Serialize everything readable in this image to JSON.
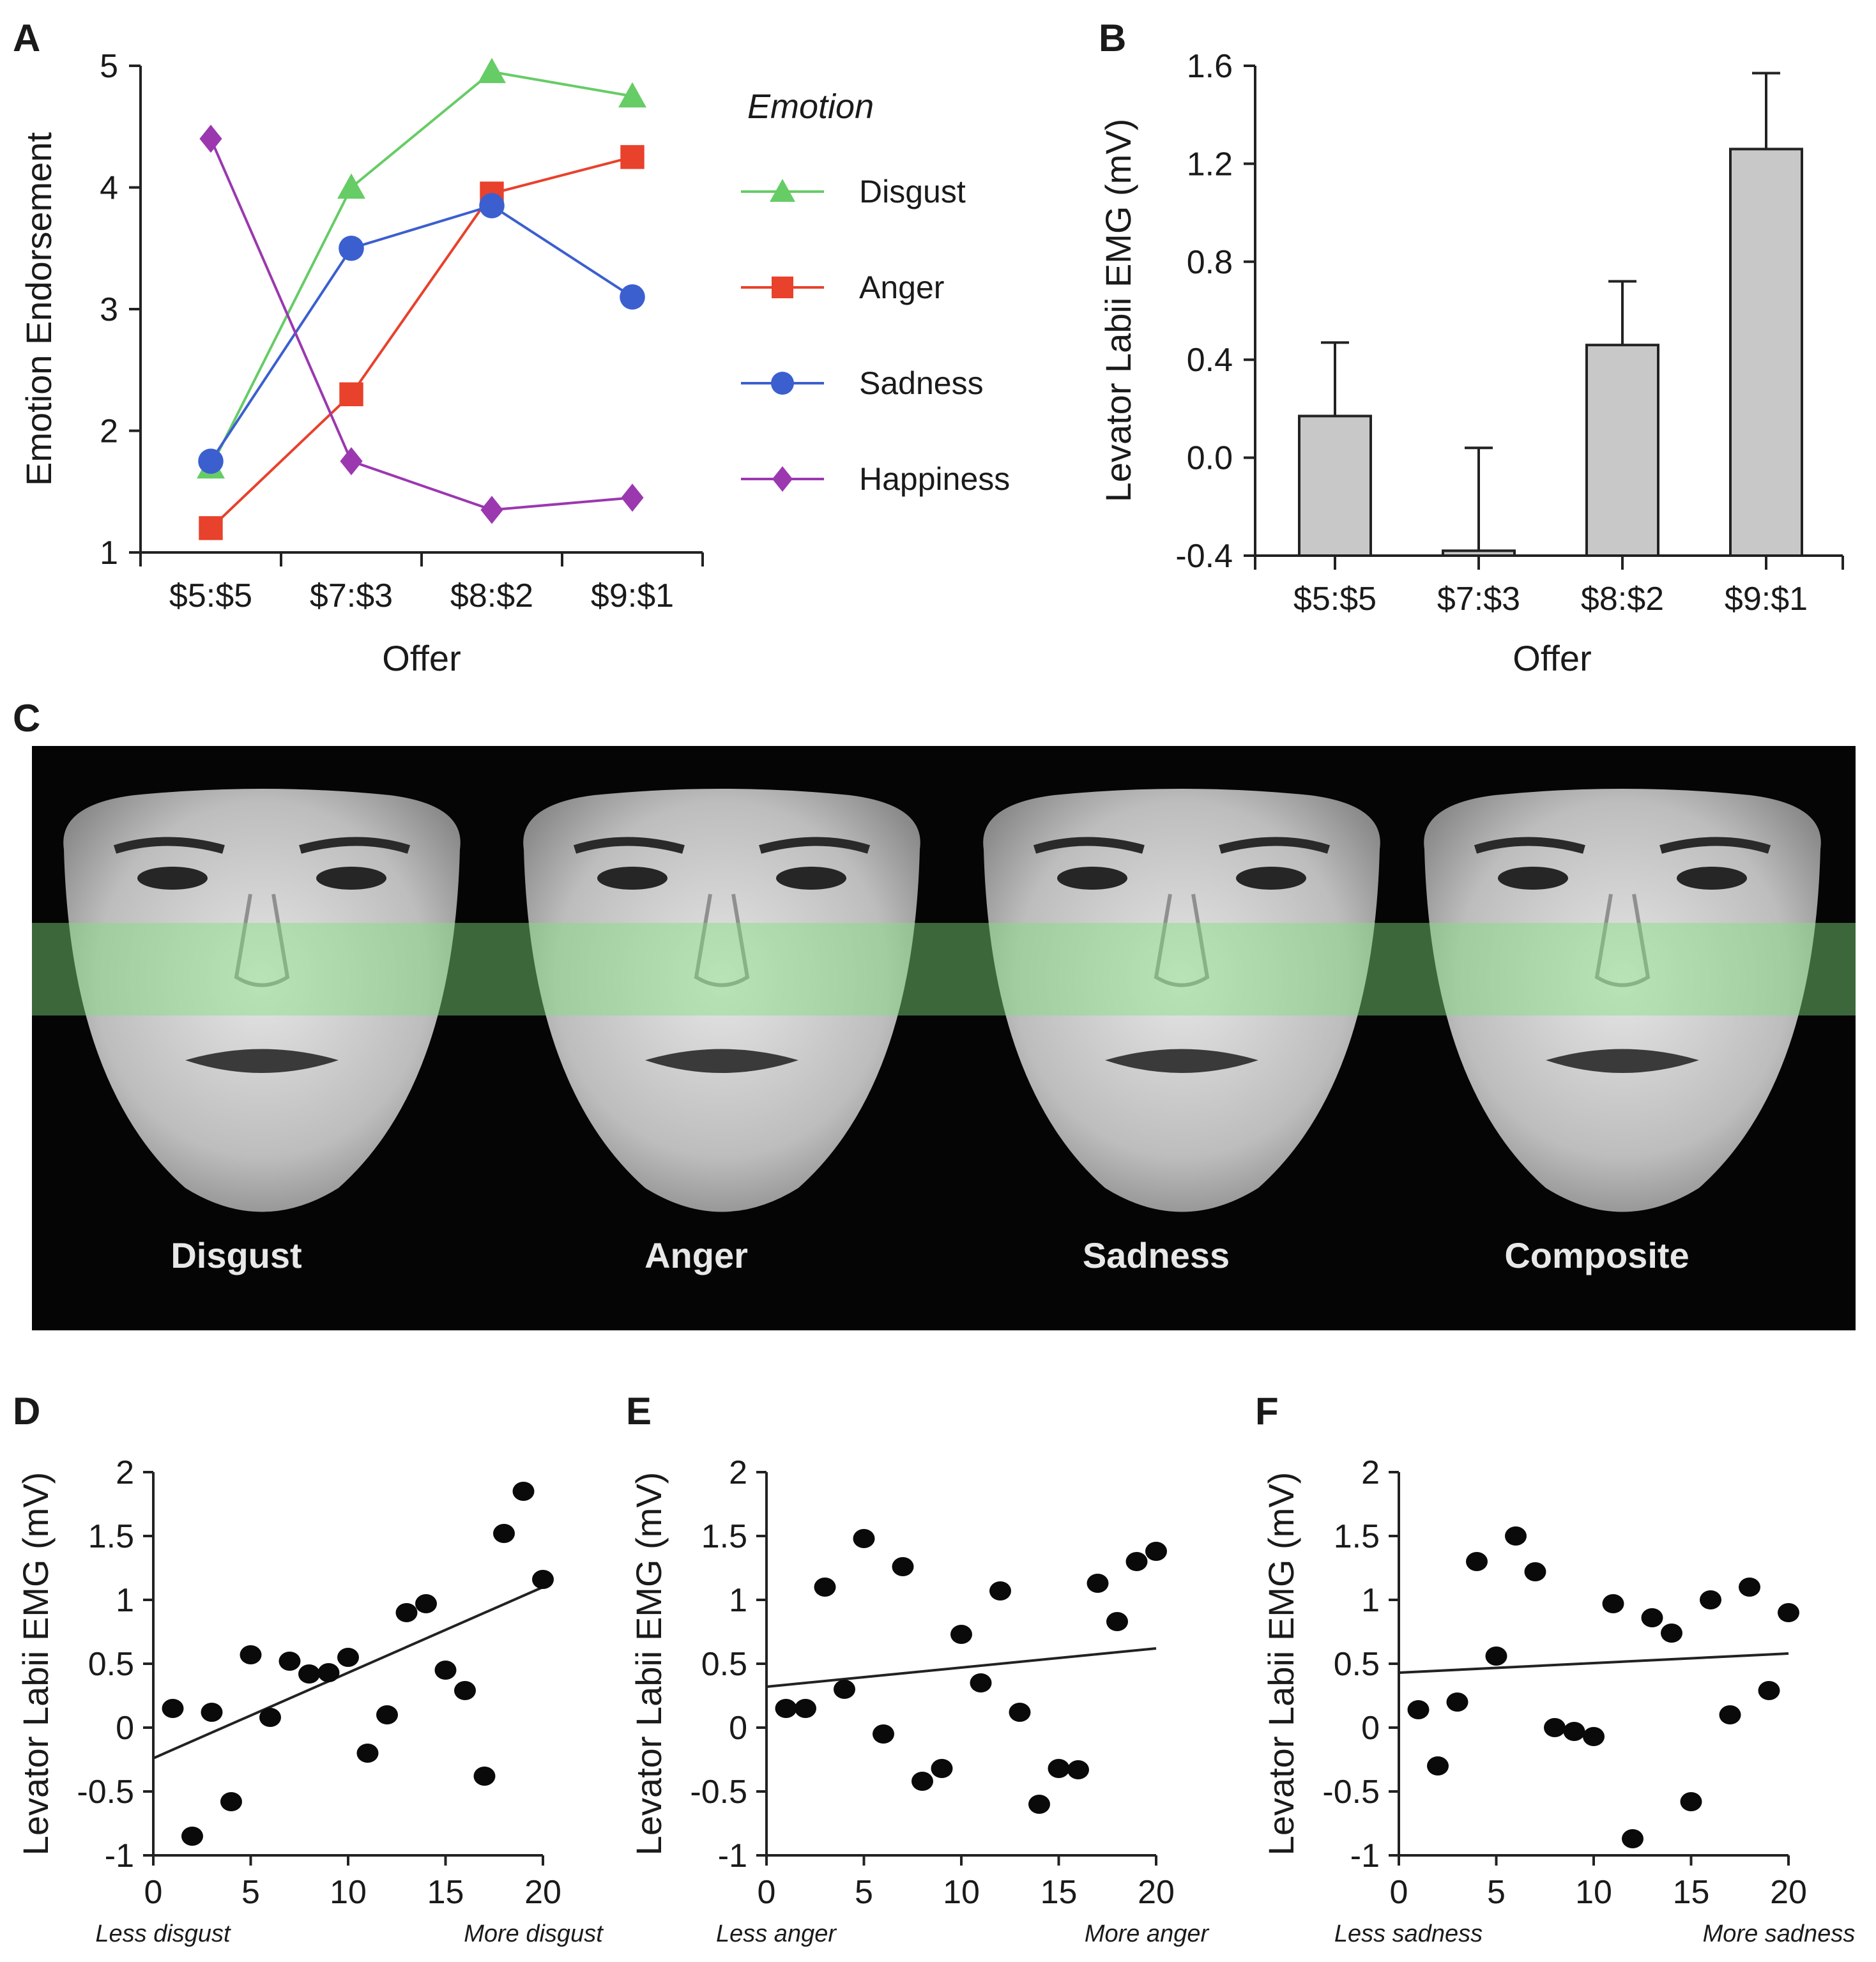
{
  "panels": {
    "A": "A",
    "B": "B",
    "C": "C",
    "D": "D",
    "E": "E",
    "F": "F"
  },
  "chart_data": [
    {
      "id": "A",
      "type": "line",
      "categories": [
        "$5:$5",
        "$7:$3",
        "$8:$2",
        "$9:$1"
      ],
      "xlabel": "Offer",
      "ylabel": "Emotion Endorsement",
      "ylim": [
        1,
        5
      ],
      "yticks": [
        1,
        2,
        3,
        4,
        5
      ],
      "legend_title": "Emotion",
      "legend_position": "right",
      "series": [
        {
          "name": "Disgust",
          "values": [
            1.7,
            4.0,
            4.95,
            4.75
          ],
          "color": "#66cc66",
          "marker": "triangle"
        },
        {
          "name": "Anger",
          "values": [
            1.2,
            2.3,
            3.95,
            4.25
          ],
          "color": "#e8412c",
          "marker": "square"
        },
        {
          "name": "Sadness",
          "values": [
            1.75,
            3.5,
            3.85,
            3.1
          ],
          "color": "#3b5fcf",
          "marker": "circle"
        },
        {
          "name": "Happiness",
          "values": [
            4.4,
            1.75,
            1.35,
            1.45
          ],
          "color": "#9b38b0",
          "marker": "diamond"
        }
      ]
    },
    {
      "id": "B",
      "type": "bar",
      "categories": [
        "$5:$5",
        "$7:$3",
        "$8:$2",
        "$9:$1"
      ],
      "values": [
        0.17,
        -0.38,
        0.46,
        1.26
      ],
      "errors": [
        0.3,
        0.42,
        0.26,
        0.31
      ],
      "xlabel": "Offer",
      "ylabel": "Levator Labii EMG (mV)",
      "ylim": [
        -0.4,
        1.6
      ],
      "yticks": [
        "-0.4",
        "0.0",
        "0.4",
        "0.8",
        "1.2",
        "1.6"
      ],
      "bar_color": "#c8c8c8"
    },
    {
      "id": "D",
      "type": "scatter",
      "xlim": [
        0,
        20
      ],
      "ylim": [
        -1,
        2
      ],
      "xticks": [
        "0",
        "5",
        "10",
        "15",
        "20"
      ],
      "yticks": [
        "-1",
        "-0.5",
        "0",
        "0.5",
        "1",
        "1.5",
        "2"
      ],
      "ylabel": "Levator Labii EMG (mV)",
      "x_low_note": "Less disgust",
      "x_high_note": "More disgust",
      "points": [
        [
          1,
          0.15
        ],
        [
          2,
          -0.85
        ],
        [
          3,
          0.12
        ],
        [
          4,
          -0.58
        ],
        [
          5,
          0.57
        ],
        [
          6,
          0.08
        ],
        [
          7,
          0.52
        ],
        [
          8,
          0.42
        ],
        [
          9,
          0.43
        ],
        [
          10,
          0.55
        ],
        [
          11,
          -0.2
        ],
        [
          12,
          0.1
        ],
        [
          13,
          0.9
        ],
        [
          14,
          0.97
        ],
        [
          15,
          0.45
        ],
        [
          16,
          0.29
        ],
        [
          17,
          -0.38
        ],
        [
          18,
          1.52
        ],
        [
          19,
          1.85
        ],
        [
          20,
          1.16
        ]
      ],
      "trend": [
        [
          0,
          -0.24
        ],
        [
          20,
          1.1
        ]
      ]
    },
    {
      "id": "E",
      "type": "scatter",
      "xlim": [
        0,
        20
      ],
      "ylim": [
        -1,
        2
      ],
      "xticks": [
        "0",
        "5",
        "10",
        "15",
        "20"
      ],
      "yticks": [
        "-1",
        "-0.5",
        "0",
        "0.5",
        "1",
        "1.5",
        "2"
      ],
      "ylabel": "Levator Labii EMG (mV)",
      "x_low_note": "Less anger",
      "x_high_note": "More anger",
      "points": [
        [
          1,
          0.15
        ],
        [
          2,
          0.15
        ],
        [
          3,
          1.1
        ],
        [
          4,
          0.3
        ],
        [
          5,
          1.48
        ],
        [
          6,
          -0.05
        ],
        [
          7,
          1.26
        ],
        [
          8,
          -0.42
        ],
        [
          9,
          -0.32
        ],
        [
          10,
          0.73
        ],
        [
          11,
          0.35
        ],
        [
          12,
          1.07
        ],
        [
          13,
          0.12
        ],
        [
          14,
          -0.6
        ],
        [
          15,
          -0.32
        ],
        [
          16,
          -0.33
        ],
        [
          17,
          1.13
        ],
        [
          18,
          0.83
        ],
        [
          19,
          1.3
        ],
        [
          20,
          1.38
        ]
      ],
      "trend": [
        [
          0,
          0.32
        ],
        [
          20,
          0.62
        ]
      ]
    },
    {
      "id": "F",
      "type": "scatter",
      "xlim": [
        0,
        20
      ],
      "ylim": [
        -1,
        2
      ],
      "xticks": [
        "0",
        "5",
        "10",
        "15",
        "20"
      ],
      "yticks": [
        "-1",
        "-0.5",
        "0",
        "0.5",
        "1",
        "1.5",
        "2"
      ],
      "ylabel": "Levator Labii EMG (mV)",
      "x_low_note": "Less sadness",
      "x_high_note": "More sadness",
      "points": [
        [
          1,
          0.14
        ],
        [
          2,
          -0.3
        ],
        [
          3,
          0.2
        ],
        [
          4,
          1.3
        ],
        [
          5,
          0.56
        ],
        [
          6,
          1.5
        ],
        [
          7,
          1.22
        ],
        [
          8,
          0.0
        ],
        [
          9,
          -0.03
        ],
        [
          10,
          -0.07
        ],
        [
          11,
          0.97
        ],
        [
          12,
          -0.87
        ],
        [
          13,
          0.86
        ],
        [
          14,
          0.74
        ],
        [
          15,
          -0.58
        ],
        [
          16,
          1.0
        ],
        [
          17,
          0.1
        ],
        [
          18,
          1.1
        ],
        [
          19,
          0.29
        ],
        [
          20,
          0.9
        ]
      ],
      "trend": [
        [
          0,
          0.43
        ],
        [
          20,
          0.58
        ]
      ]
    }
  ],
  "faces": {
    "labels": [
      "Disgust",
      "Anger",
      "Sadness",
      "Composite"
    ],
    "band_color": "#7ee07e"
  }
}
